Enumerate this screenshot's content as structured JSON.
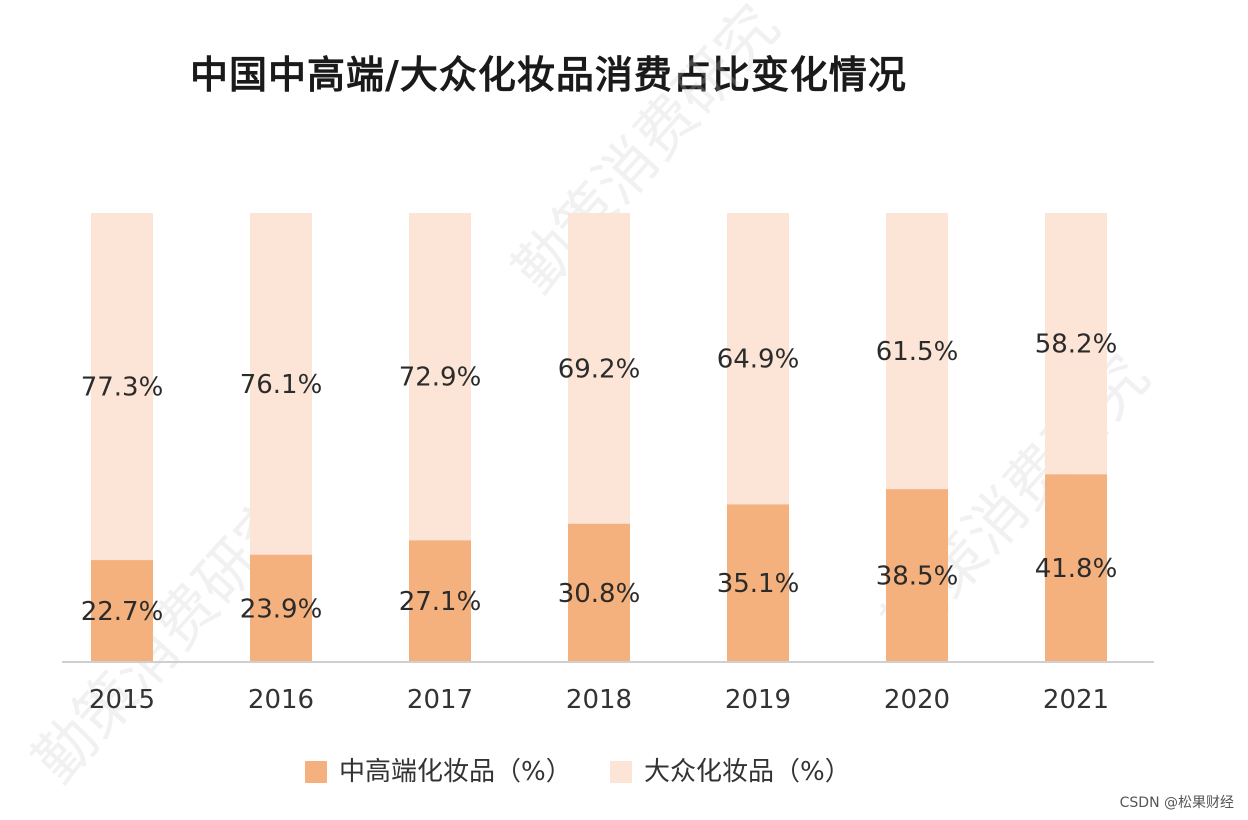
{
  "title": "中国中高端/大众化妆品消费占比变化情况",
  "watermark": "勤策消费研究",
  "credit": "CSDN @松果财经",
  "colors": {
    "premium": "#f4b17e",
    "mass": "#fce5d6",
    "label": "#2b2b2b",
    "axis": "#cfcfcf"
  },
  "chart_data": {
    "type": "bar",
    "stacked": true,
    "percent": true,
    "title": "中国中高端/大众化妆品消费占比变化情况",
    "categories": [
      "2015",
      "2016",
      "2017",
      "2018",
      "2019",
      "2020",
      "2021"
    ],
    "series": [
      {
        "name": "中高端化妆品（%）",
        "values": [
          22.7,
          23.9,
          27.1,
          30.8,
          35.1,
          38.5,
          41.8
        ],
        "labels": [
          "22.7%",
          "23.9%",
          "27.1%",
          "30.8%",
          "35.1%",
          "38.5%",
          "41.8%"
        ]
      },
      {
        "name": "大众化妆品（%）",
        "values": [
          77.3,
          76.1,
          72.9,
          69.2,
          64.9,
          61.5,
          58.2
        ],
        "labels": [
          "77.3%",
          "76.1%",
          "72.9%",
          "69.2%",
          "64.9%",
          "61.5%",
          "58.2%"
        ]
      }
    ],
    "ylim": [
      0,
      100
    ],
    "xlabel": "",
    "ylabel": "",
    "grid": false,
    "legend": "bottom"
  }
}
